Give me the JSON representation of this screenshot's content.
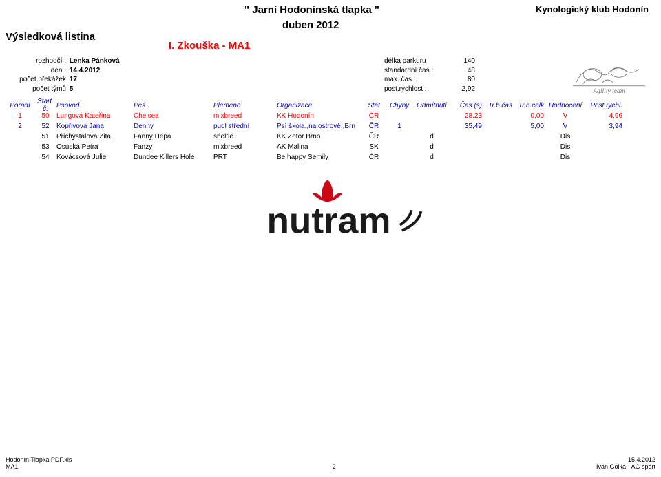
{
  "header": {
    "event_title": "\" Jarní Hodonínská tlapka \"",
    "event_subtitle": "duben   2012",
    "club": "Kynologický klub Hodonín",
    "result_heading": "Výsledková listina",
    "trial": "I.   Zkouška - MA1"
  },
  "meta_left": {
    "judge_label": "rozhodčí :",
    "judge_value": "Lenka Pánková",
    "date_label": "den :",
    "date_value": "14.4.2012",
    "obst_label": "počet překážek",
    "obst_value": "17",
    "teams_label": "počet týmů",
    "teams_value": "5"
  },
  "meta_right": {
    "len_label": "délka parkuru",
    "len_value": "140",
    "sct_label": "standardní čas :",
    "sct_value": "48",
    "mct_label": "max. čas :",
    "mct_value": "80",
    "spd_label": "post.rychlost :",
    "spd_value": "2,92"
  },
  "columns": {
    "poradi": "Pořadí",
    "startc": "Start. č.",
    "psovod": "Psovod",
    "pes": "Pes",
    "plemeno": "Plemeno",
    "org": "Organizace",
    "stat": "Stát",
    "chyby": "Chyby",
    "odmit": "Odmítnutí",
    "cas": "Čas (s)",
    "trcas": "Tr.b.čas",
    "trcelk": "Tr.b.celk",
    "hodn": "Hodnocení",
    "postr": "Post.rychl."
  },
  "rows": [
    {
      "cls": "r1",
      "poradi": "1",
      "startc": "50",
      "psovod": "Lungová Kateřina",
      "pes": "Chelsea",
      "plemeno": "mixbreed",
      "org": "KK Hodonín",
      "stat": "ČR",
      "chyby": "",
      "odmit": "",
      "cas": "28,23",
      "trcas": "",
      "trcelk": "0,00",
      "hodn": "V",
      "postr": "4,96"
    },
    {
      "cls": "r2",
      "poradi": "2",
      "startc": "52",
      "psovod": "Kopřivová Jana",
      "pes": "Denny",
      "plemeno": "pudl střední",
      "org": "Psí škola,,na ostrově,,Brn",
      "stat": "ČR",
      "chyby": "1",
      "odmit": "",
      "cas": "35,49",
      "trcas": "",
      "trcelk": "5,00",
      "hodn": "V",
      "postr": "3,94"
    },
    {
      "cls": "rb",
      "poradi": "",
      "startc": "51",
      "psovod": "Přichystalová Zita",
      "pes": "Fanny Hepa",
      "plemeno": "sheltie",
      "org": "KK Zetor Brno",
      "stat": "ČR",
      "chyby": "",
      "odmit": "d",
      "cas": "",
      "trcas": "",
      "trcelk": "",
      "hodn": "Dis",
      "postr": ""
    },
    {
      "cls": "rb",
      "poradi": "",
      "startc": "53",
      "psovod": "Osuská Petra",
      "pes": "Fanzy",
      "plemeno": "mixbreed",
      "org": "AK Malina",
      "stat": "SK",
      "chyby": "",
      "odmit": "d",
      "cas": "",
      "trcas": "",
      "trcelk": "",
      "hodn": "Dis",
      "postr": ""
    },
    {
      "cls": "rb",
      "poradi": "",
      "startc": "54",
      "psovod": "Kovácsová Julie",
      "pes": "Dundee Killers Hole",
      "plemeno": "PRT",
      "org": "Be happy Semily",
      "stat": "ČR",
      "chyby": "",
      "odmit": "d",
      "cas": "",
      "trcas": "",
      "trcelk": "",
      "hodn": "Dis",
      "postr": ""
    }
  ],
  "footer": {
    "file": "Hodonín Tlapka PDF.xls",
    "sheet": "MA1",
    "page": "2",
    "date": "15.4.2012",
    "credit": "Ivan Golka - AG sport"
  },
  "logo": {
    "team_text": "Agility team"
  },
  "sponsor": {
    "brand": "nutram",
    "leaf_color": "#cc0814"
  }
}
